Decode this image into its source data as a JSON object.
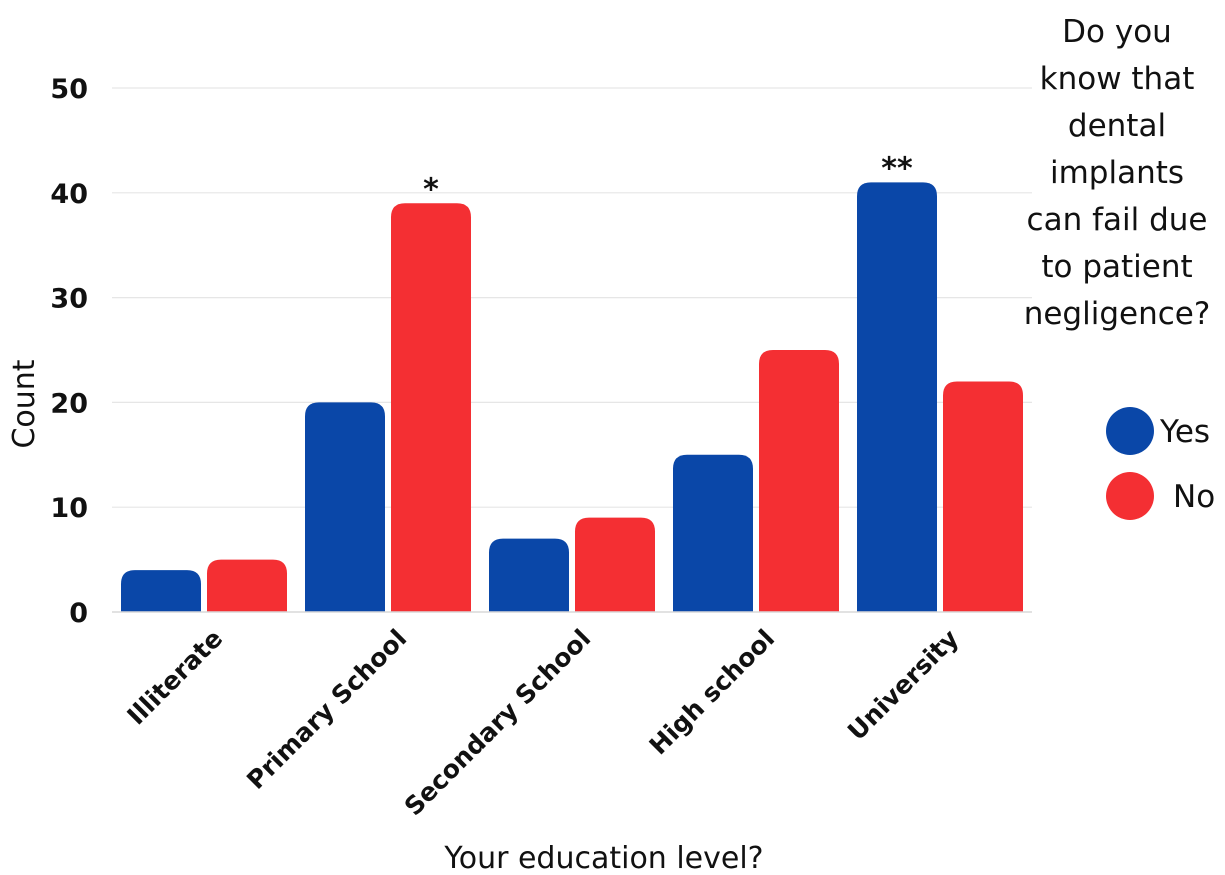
{
  "chart_data": {
    "type": "bar",
    "xlabel": "Your education level?",
    "ylabel": "Count",
    "ylim": [
      0,
      50
    ],
    "yticks": [
      0,
      10,
      20,
      30,
      40,
      50
    ],
    "grid": true,
    "categories": [
      "Illiterate",
      "Primary School",
      "Secondary School",
      "High school",
      "University"
    ],
    "series": [
      {
        "name": "Yes",
        "color": "#0a47a8",
        "values": [
          4,
          20,
          7,
          15,
          41
        ]
      },
      {
        "name": "No",
        "color": "#f42f33",
        "values": [
          5,
          39,
          9,
          25,
          22
        ]
      }
    ],
    "legend": {
      "title_lines": [
        "Do you",
        "know that",
        "dental",
        "implants",
        "can fail due",
        "to patient",
        "negligence?"
      ],
      "placement": "right"
    },
    "annotations": [
      {
        "category": "Primary School",
        "series": "No",
        "text": "*"
      },
      {
        "category": "University",
        "series": "Yes",
        "text": "**"
      }
    ]
  }
}
